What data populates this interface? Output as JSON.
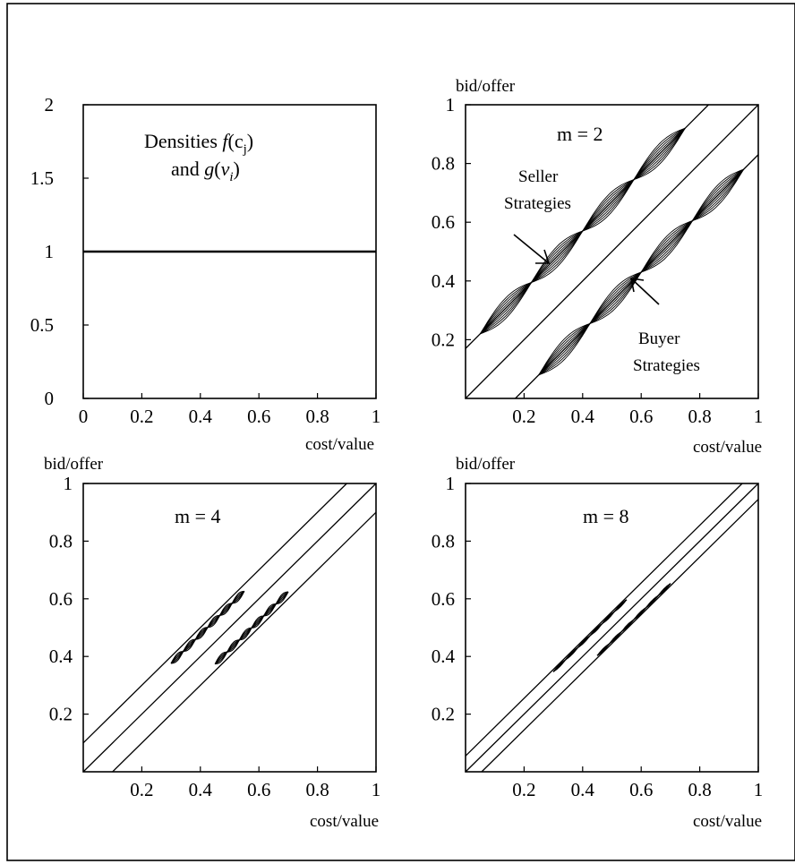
{
  "figure": {
    "border_color": "#000000",
    "background": "#ffffff"
  },
  "chart_data": [
    {
      "id": "densities",
      "type": "line",
      "title_parts": {
        "pre": "Densities ",
        "f": "f",
        "c": "(c",
        "c_sub": "j",
        "close1": ")",
        "and": "and ",
        "g": "g",
        "open": "(",
        "nu": "ν",
        "nu_sub": "i",
        "close2": ")"
      },
      "xlabel": "cost/value",
      "ylabel": "",
      "xlim": [
        0,
        1
      ],
      "ylim": [
        0,
        2
      ],
      "xticks": [
        "0",
        "0.2",
        "0.4",
        "0.6",
        "0.8",
        "1"
      ],
      "yticks": [
        "0",
        "0.5",
        "1",
        "1.5",
        "2"
      ],
      "series": [
        {
          "x": [
            0,
            1
          ],
          "y": [
            1,
            1
          ]
        }
      ]
    },
    {
      "id": "m2",
      "type": "line",
      "title": "m = 2",
      "xlabel": "cost/value",
      "ylabel": "bid/offer",
      "xlim": [
        0,
        1
      ],
      "ylim": [
        0,
        1
      ],
      "xticks": [
        "0.2",
        "0.4",
        "0.6",
        "0.8",
        "1"
      ],
      "yticks": [
        "0.2",
        "0.4",
        "0.6",
        "0.8",
        "1"
      ],
      "seller_offset": 0.17,
      "buyer_offset": -0.17,
      "fan_amplitude": 0.035,
      "annotations": [
        {
          "id": "seller",
          "lines": [
            "Seller",
            "Strategies"
          ]
        },
        {
          "id": "buyer",
          "lines": [
            "Buyer",
            "Strategies"
          ]
        }
      ]
    },
    {
      "id": "m4",
      "type": "line",
      "title": "m = 4",
      "xlabel": "cost/value",
      "ylabel": "bid/offer",
      "xlim": [
        0,
        1
      ],
      "ylim": [
        0,
        1
      ],
      "xticks": [
        "0.2",
        "0.4",
        "0.6",
        "0.8",
        "1"
      ],
      "yticks": [
        "0.2",
        "0.4",
        "0.6",
        "0.8",
        "1"
      ],
      "seller_offset": 0.1,
      "buyer_offset": -0.1,
      "fan_amplitude": 0.012
    },
    {
      "id": "m8",
      "type": "line",
      "title": "m = 8",
      "xlabel": "cost/value",
      "ylabel": "bid/offer",
      "xlim": [
        0,
        1
      ],
      "ylim": [
        0,
        1
      ],
      "xticks": [
        "0.2",
        "0.4",
        "0.6",
        "0.8",
        "1"
      ],
      "yticks": [
        "0.2",
        "0.4",
        "0.6",
        "0.8",
        "1"
      ],
      "seller_offset": 0.055,
      "buyer_offset": -0.055,
      "fan_amplitude": 0.004
    }
  ]
}
